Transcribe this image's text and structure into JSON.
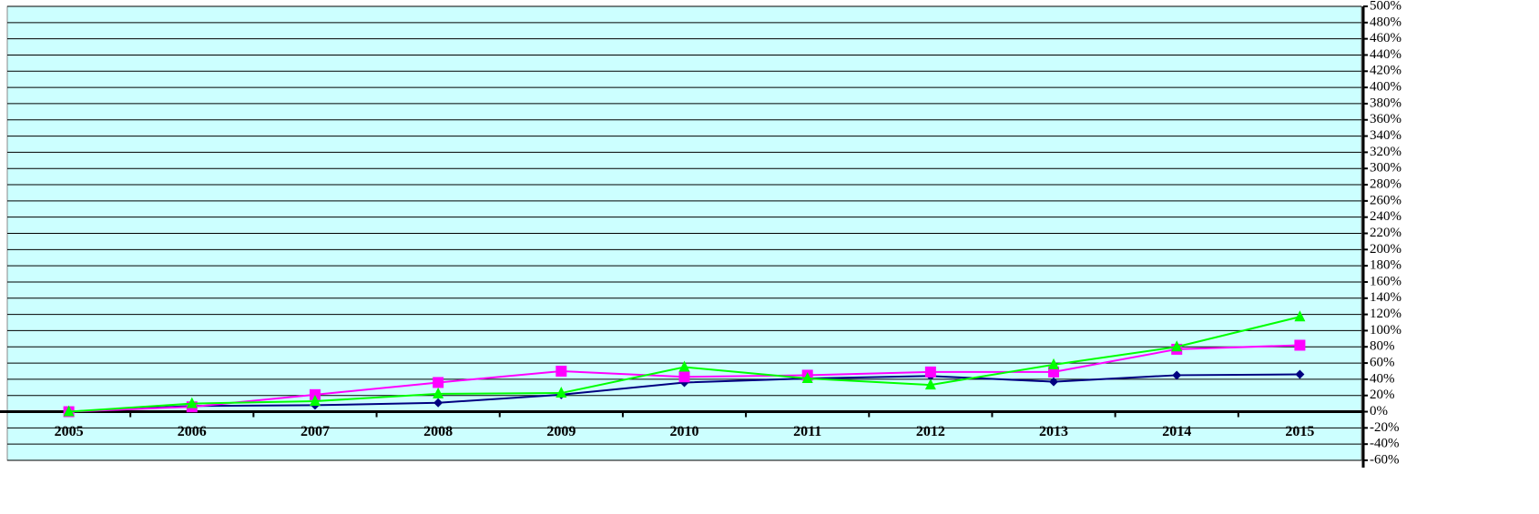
{
  "chart_data": {
    "type": "line",
    "categories": [
      "2005",
      "2006",
      "2007",
      "2008",
      "2009",
      "2010",
      "2011",
      "2012",
      "2013",
      "2014",
      "2015"
    ],
    "series": [
      {
        "color": "#000080",
        "marker": "diamond",
        "values": [
          0,
          7,
          8,
          11,
          21,
          36,
          41,
          44,
          37,
          45,
          46
        ]
      },
      {
        "color": "#ff00ff",
        "marker": "square",
        "values": [
          0,
          6,
          21,
          36,
          50,
          43,
          45,
          49,
          49,
          77,
          82
        ]
      },
      {
        "color": "#00ff00",
        "marker": "triangle",
        "values": [
          0,
          10,
          13,
          22,
          23,
          55,
          41,
          33,
          58,
          80,
          117
        ]
      }
    ],
    "ylim": [
      -60,
      500
    ],
    "yticks": [
      {
        "value": -60,
        "label": "-60%"
      },
      {
        "value": -40,
        "label": "-40%"
      },
      {
        "value": -20,
        "label": "-20%"
      },
      {
        "value": 0,
        "label": "0%"
      },
      {
        "value": 20,
        "label": "20%"
      },
      {
        "value": 40,
        "label": "40%"
      },
      {
        "value": 60,
        "label": "60%"
      },
      {
        "value": 80,
        "label": "80%"
      },
      {
        "value": 100,
        "label": "100%"
      },
      {
        "value": 120,
        "label": "120%"
      },
      {
        "value": 140,
        "label": "140%"
      },
      {
        "value": 160,
        "label": "160%"
      },
      {
        "value": 180,
        "label": "180%"
      },
      {
        "value": 200,
        "label": "200%"
      },
      {
        "value": 220,
        "label": "220%"
      },
      {
        "value": 240,
        "label": "240%"
      },
      {
        "value": 260,
        "label": "260%"
      },
      {
        "value": 280,
        "label": "280%"
      },
      {
        "value": 300,
        "label": "300%"
      },
      {
        "value": 320,
        "label": "320%"
      },
      {
        "value": 340,
        "label": "340%"
      },
      {
        "value": 360,
        "label": "360%"
      },
      {
        "value": 380,
        "label": "380%"
      },
      {
        "value": 400,
        "label": "400%"
      },
      {
        "value": 420,
        "label": "420%"
      },
      {
        "value": 440,
        "label": "440%"
      },
      {
        "value": 460,
        "label": "460%"
      },
      {
        "value": 480,
        "label": "480%"
      },
      {
        "value": 500,
        "label": "500%"
      }
    ],
    "grid": true,
    "axis_side": "right",
    "background": "#ccffff"
  }
}
